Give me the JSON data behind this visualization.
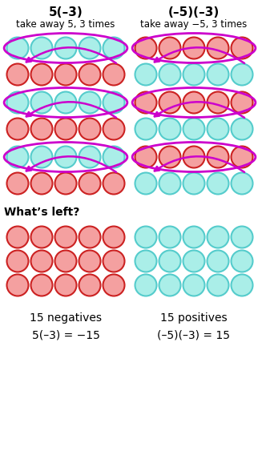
{
  "title_left": "5(–3)",
  "title_right": "(–5)(–3)",
  "subtitle_left": "take away 5, 3 times",
  "subtitle_right": "take away −5, 3 times",
  "whats_left": "What’s left?",
  "label_left_neg": "15 negatives",
  "label_right_pos": "15 positives",
  "equation_left": "5(–3) = −15",
  "equation_right": "(–5)(–3) = 15",
  "cyan_fill": "#AAEEE8",
  "cyan_edge": "#55CCCC",
  "red_fill": "#F4A0A0",
  "red_edge": "#CC2222",
  "ellipse_color": "#CC00CC",
  "arrow_color": "#CC00CC",
  "background": "#FFFFFF",
  "figw": 3.22,
  "figh": 5.68,
  "dpi": 100
}
